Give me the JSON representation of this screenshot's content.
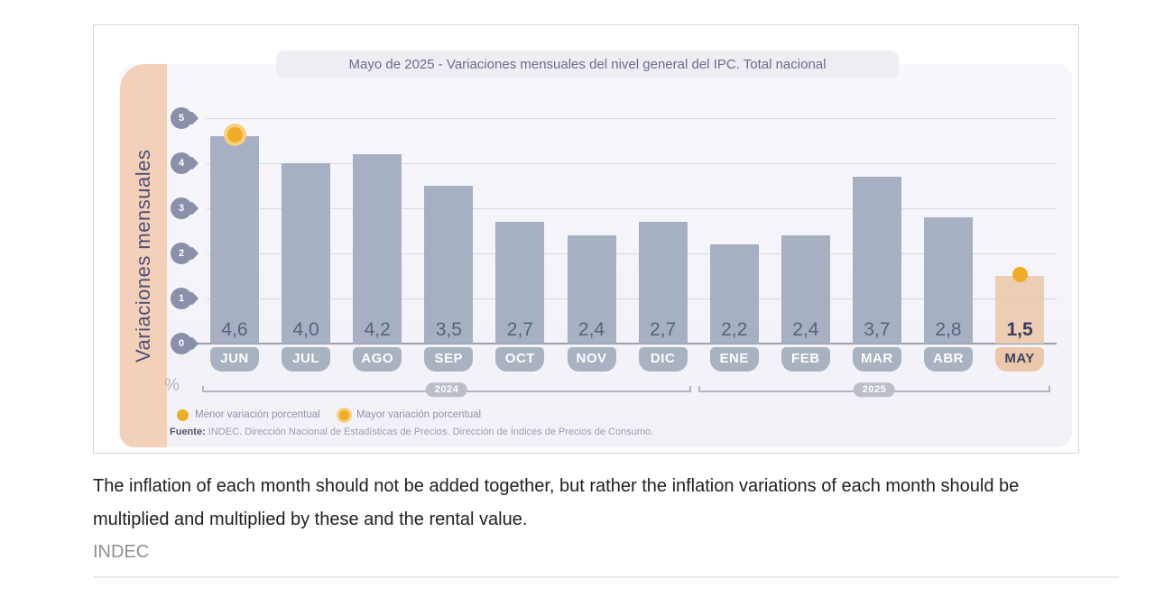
{
  "chart_data": {
    "type": "bar",
    "title": "Mayo de 2025 - Variaciones mensuales del nivel general del IPC. Total nacional",
    "ylabel": "Variaciones mensuales",
    "unit": "%",
    "categories": [
      "JUN",
      "JUL",
      "AGO",
      "SEP",
      "OCT",
      "NOV",
      "DIC",
      "ENE",
      "FEB",
      "MAR",
      "ABR",
      "MAY"
    ],
    "values": [
      4.6,
      4.0,
      4.2,
      3.5,
      2.7,
      2.4,
      2.7,
      2.2,
      2.4,
      3.7,
      2.8,
      1.5
    ],
    "value_labels": [
      "4,6",
      "4,0",
      "4,2",
      "3,5",
      "2,7",
      "2,4",
      "2,7",
      "2,2",
      "2,4",
      "3,7",
      "2,8",
      "1,5"
    ],
    "ylim": [
      0,
      5
    ],
    "yticks": [
      0,
      1,
      2,
      3,
      4,
      5
    ],
    "grid": true,
    "highlight_index": 11,
    "year_groups": [
      {
        "label": "2024",
        "from": "JUN",
        "to": "DIC"
      },
      {
        "label": "2025",
        "from": "ENE",
        "to": "MAY"
      }
    ],
    "max_marker": {
      "category": "JUN",
      "value": 4.6
    },
    "min_marker": {
      "category": "MAY",
      "value": 1.5
    },
    "colors": {
      "bar": "#a6b0c2",
      "highlight_bar": "#ecc9ac",
      "marker_dot": "#efac27",
      "marker_ring": "#f6cf80",
      "band": "#f3d0ba"
    }
  },
  "labels": {
    "percent": "%"
  },
  "legend": {
    "menor_label": "Menor variación porcentual",
    "mayor_label": "Mayor variación porcentual"
  },
  "source": {
    "prefix": "Fuente:",
    "text": " INDEC. Dirección Nacional de Estadísticas de Precios. Dirección de Índices de Precios de Consumo."
  },
  "caption": {
    "text": "The inflation of each month should not be added together, but rather the inflation variations of each month should be multiplied and multiplied by these and the rental value.",
    "attribution": "INDEC"
  }
}
